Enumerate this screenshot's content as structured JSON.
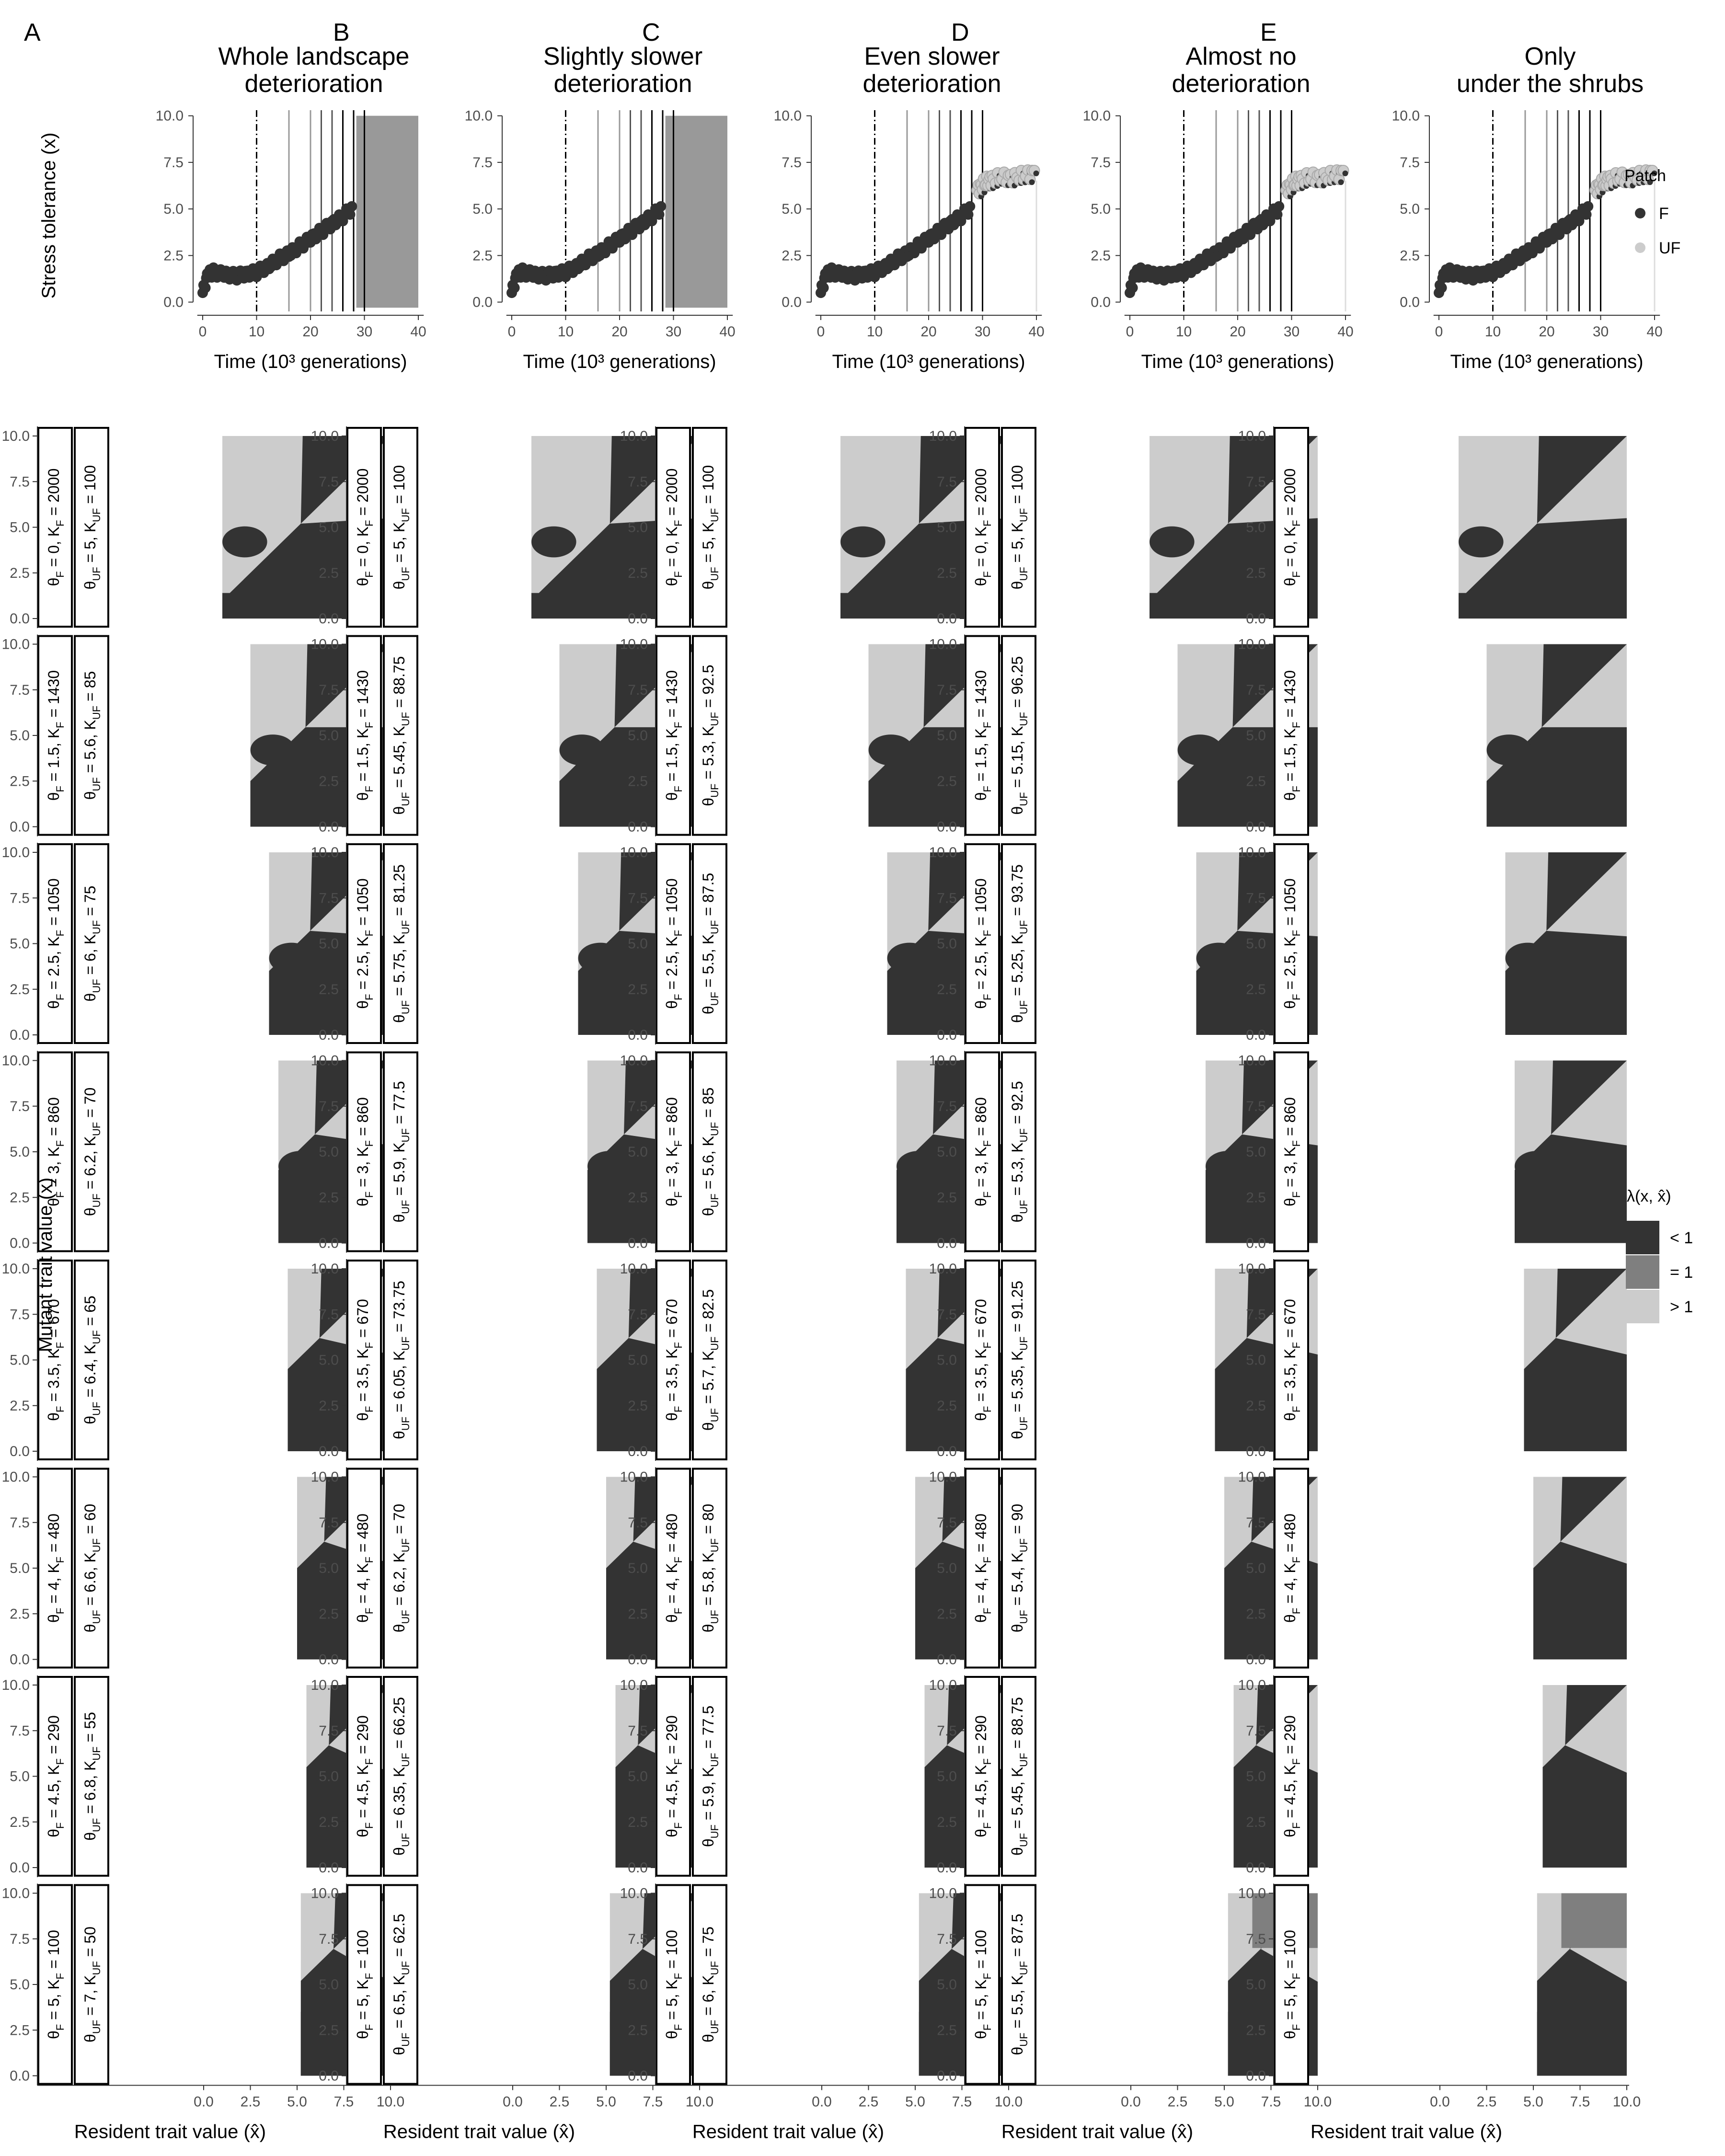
{
  "chart_data": {
    "type": "faceted-figure",
    "panels": [
      {
        "label": "A",
        "title": [
          "Whole landscape",
          "deterioration"
        ],
        "reaction_norm_end": 30,
        "strip_F": [
          "θF = 0, KF = 2000",
          "θF = 1.5, KF = 1430",
          "θF = 2.5, KF = 1050",
          "θF = 3, KF = 860",
          "θF = 3.5, KF = 670",
          "θF = 4, KF = 480",
          "θF = 4.5, KF = 290",
          "θF = 5, KF = 100"
        ],
        "strip_UF": [
          "θUF = 5, KUF = 100",
          "θUF = 5.6, KUF = 85",
          "θUF = 6, KUF = 75",
          "θUF = 6.2, KUF = 70",
          "θUF = 6.4, KUF = 65",
          "θUF = 6.6, KUF = 60",
          "θUF = 6.8, KUF = 55",
          "θUF = 7, KUF = 50"
        ]
      },
      {
        "label": "B",
        "title": [
          "Slightly slower",
          "deterioration"
        ],
        "reaction_norm_end": 30,
        "strip_F": [
          "θF = 0, KF = 2000",
          "θF = 1.5, KF = 1430",
          "θF = 2.5, KF = 1050",
          "θF = 3, KF = 860",
          "θF = 3.5, KF = 670",
          "θF = 4, KF = 480",
          "θF = 4.5, KF = 290",
          "θF = 5, KF = 100"
        ],
        "strip_UF": [
          "θUF = 5, KUF = 100",
          "θUF = 5.45, KUF = 88.75",
          "θUF = 5.75, KUF = 81.25",
          "θUF = 5.9, KUF = 77.5",
          "θUF = 6.05, KUF = 73.75",
          "θUF = 6.2, KUF = 70",
          "θUF = 6.35, KUF = 66.25",
          "θUF = 6.5, KUF = 62.5"
        ]
      },
      {
        "label": "C",
        "title": [
          "Even slower",
          "deterioration"
        ],
        "reaction_norm_end": 40,
        "strip_F": [
          "θF = 0, KF = 2000",
          "θF = 1.5, KF = 1430",
          "θF = 2.5, KF = 1050",
          "θF = 3, KF = 860",
          "θF = 3.5, KF = 670",
          "θF = 4, KF = 480",
          "θF = 4.5, KF = 290",
          "θF = 5, KF = 100"
        ],
        "strip_UF": [
          "θUF = 5, KUF = 100",
          "θUF = 5.3, KUF = 92.5",
          "θUF = 5.5, KUF = 87.5",
          "θUF = 5.6, KUF = 85",
          "θUF = 5.7, KUF = 82.5",
          "θUF = 5.8, KUF = 80",
          "θUF = 5.9, KUF = 77.5",
          "θUF = 6, KUF = 75"
        ]
      },
      {
        "label": "D",
        "title": [
          "Almost no",
          "deterioration"
        ],
        "reaction_norm_end": 40,
        "strip_F": [
          "θF = 0, KF = 2000",
          "θF = 1.5, KF = 1430",
          "θF = 2.5, KF = 1050",
          "θF = 3, KF = 860",
          "θF = 3.5, KF = 670",
          "θF = 4, KF = 480",
          "θF = 4.5, KF = 290",
          "θF = 5, KF = 100"
        ],
        "strip_UF": [
          "θUF = 5, KUF = 100",
          "θUF = 5.15, KUF = 96.25",
          "θUF = 5.25, KUF = 93.75",
          "θUF = 5.3, KUF = 92.5",
          "θUF = 5.35, KUF = 91.25",
          "θUF = 5.4, KUF = 90",
          "θUF = 5.45, KUF = 88.75",
          "θUF = 5.5, KUF = 87.5"
        ]
      },
      {
        "label": "E",
        "title": [
          "Only",
          "under the shrubs"
        ],
        "reaction_norm_end": 40,
        "strip_F": [
          "θF = 0, KF = 2000",
          "θF = 1.5, KF = 1430",
          "θF = 2.5, KF = 1050",
          "θF = 3, KF = 860",
          "θF = 3.5, KF = 670",
          "θF = 4, KF = 480",
          "θF = 4.5, KF = 290",
          "θF = 5, KF = 100"
        ],
        "strip_UF": []
      }
    ],
    "top_row": {
      "type": "scatter",
      "xlabel": "Time (10³ generations)",
      "ylabel": "Stress tolerance (x)",
      "xlim": [
        0,
        40
      ],
      "ylim": [
        0,
        10
      ],
      "x_ticks": [
        "0",
        "10",
        "20",
        "30",
        "40"
      ],
      "y_ticks": [
        "0.0",
        "2.5",
        "5.0",
        "7.5",
        "10.0"
      ],
      "dashdot_vline": 10,
      "change_times": [
        16,
        20,
        22,
        24,
        26,
        28,
        30
      ],
      "shaded_extinct_region": [
        28.5,
        40
      ],
      "trajectory_F": [
        [
          0,
          0.5
        ],
        [
          1,
          1.5
        ],
        [
          2,
          1.6
        ],
        [
          4,
          1.5
        ],
        [
          6,
          1.4
        ],
        [
          8,
          1.5
        ],
        [
          10,
          1.6
        ],
        [
          12,
          1.9
        ],
        [
          14,
          2.3
        ],
        [
          16,
          2.6
        ],
        [
          18,
          3.0
        ],
        [
          20,
          3.4
        ],
        [
          22,
          3.8
        ],
        [
          24,
          4.2
        ],
        [
          26,
          4.6
        ],
        [
          28,
          5.1
        ]
      ],
      "trajectory_late": [
        [
          29,
          6.0
        ],
        [
          30,
          6.3
        ],
        [
          31,
          6.5
        ],
        [
          32,
          6.6
        ],
        [
          34,
          6.7
        ],
        [
          36,
          6.7
        ],
        [
          38,
          6.8
        ],
        [
          40,
          7.0
        ]
      ],
      "legend_title": "Patch",
      "legend": [
        {
          "name": "F",
          "color": "#333333"
        },
        {
          "name": "UF",
          "color": "#cccccc"
        }
      ]
    },
    "pip_row": {
      "type": "heatmap",
      "xlabel": "Resident trait value (x̂)",
      "ylabel": "Mutant trait value (x)",
      "xlim": [
        0,
        10
      ],
      "ylim": [
        0,
        10
      ],
      "x_ticks": [
        "0.0",
        "2.5",
        "5.0",
        "7.5",
        "10.0"
      ],
      "y_ticks": [
        "0.0",
        "2.5",
        "5.0",
        "7.5",
        "10.0"
      ],
      "extinction_threshold_x": [
        1.0,
        2.5,
        3.5,
        4.0,
        4.5,
        5.0,
        5.5,
        5.2
      ],
      "legend_title": "λ(x, x̂)",
      "legend": [
        {
          "name": "< 1",
          "color": "#333333"
        },
        {
          "name": "= 1",
          "color": "#7f7f7f"
        },
        {
          "name": "> 1",
          "color": "#cccccc"
        }
      ]
    }
  }
}
